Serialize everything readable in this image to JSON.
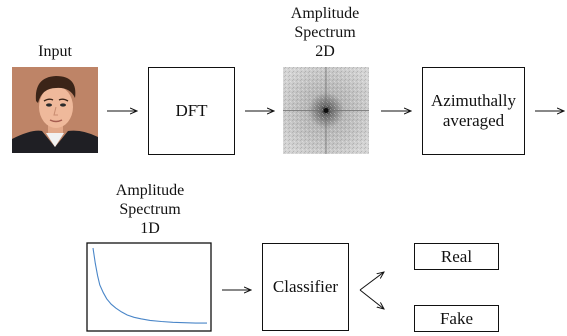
{
  "labels": {
    "input": "Input",
    "spectrum2d": [
      "Amplitude",
      "Spectrum",
      "2D"
    ],
    "spectrum1d": [
      "Amplitude",
      "Spectrum",
      "1D"
    ]
  },
  "boxes": {
    "dft": "DFT",
    "azimuthal": [
      "Azimuthally",
      "averaged"
    ],
    "classifier": "Classifier",
    "real": "Real",
    "fake": "Fake"
  },
  "spectrum_curve": {
    "type": "line",
    "x": [
      0,
      2,
      4,
      6,
      9,
      12,
      16,
      20,
      25,
      30,
      36,
      42,
      50,
      60,
      70,
      80,
      90,
      100
    ],
    "y": [
      100,
      80,
      64,
      52,
      42,
      34,
      27,
      22,
      17,
      13,
      10,
      8,
      6,
      4.5,
      3.5,
      3,
      2.5,
      2.5
    ],
    "color": "#4a86c8"
  }
}
